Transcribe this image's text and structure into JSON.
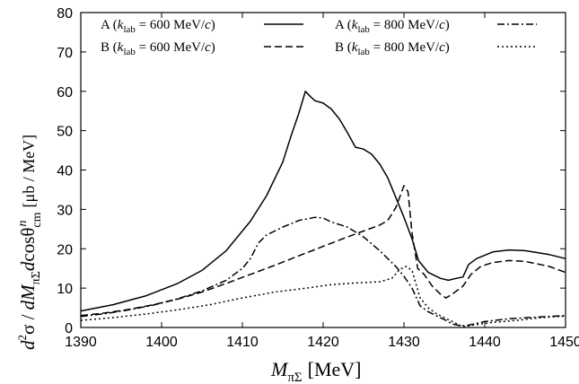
{
  "chart_data": {
    "type": "line",
    "xlabel": "M_πΣ [MeV]",
    "ylabel": "d²σ / dM_πΣ dcosθ^n_cm [μb / MeV]",
    "xlim": [
      1390,
      1450
    ],
    "ylim": [
      0,
      80
    ],
    "xticks": [
      1390,
      1400,
      1410,
      1420,
      1430,
      1440,
      1450
    ],
    "yticks": [
      0,
      10,
      20,
      30,
      40,
      50,
      60,
      70,
      80
    ],
    "grid": false,
    "legend_position": "top",
    "series": [
      {
        "name": "A (k_lab = 600 MeV/c)",
        "style": "solid",
        "points": [
          [
            1390,
            4.2
          ],
          [
            1394,
            5.8
          ],
          [
            1398,
            8.0
          ],
          [
            1402,
            11.2
          ],
          [
            1405,
            14.5
          ],
          [
            1408,
            19.5
          ],
          [
            1411,
            27.0
          ],
          [
            1413,
            33.5
          ],
          [
            1415,
            42.0
          ],
          [
            1416,
            48.5
          ],
          [
            1417,
            54.5
          ],
          [
            1417.8,
            60.0
          ],
          [
            1418.5,
            58.5
          ],
          [
            1419,
            57.6
          ],
          [
            1420,
            57.0
          ],
          [
            1421,
            55.5
          ],
          [
            1422,
            53.0
          ],
          [
            1423,
            49.5
          ],
          [
            1424,
            45.8
          ],
          [
            1425,
            45.3
          ],
          [
            1426,
            44.0
          ],
          [
            1427,
            41.5
          ],
          [
            1428,
            38.0
          ],
          [
            1429,
            33.0
          ],
          [
            1430,
            28.0
          ],
          [
            1431,
            22.5
          ],
          [
            1431.8,
            17.0
          ],
          [
            1433,
            14.0
          ],
          [
            1434.5,
            12.5
          ],
          [
            1435.5,
            12.0
          ],
          [
            1436.5,
            12.5
          ],
          [
            1437.3,
            12.8
          ],
          [
            1438,
            16.0
          ],
          [
            1439,
            17.5
          ],
          [
            1441,
            19.2
          ],
          [
            1443,
            19.7
          ],
          [
            1445,
            19.5
          ],
          [
            1448,
            18.5
          ],
          [
            1450,
            17.5
          ]
        ]
      },
      {
        "name": "B (k_lab = 600 MeV/c)",
        "style": "dashed",
        "points": [
          [
            1390,
            3.0
          ],
          [
            1393,
            3.7
          ],
          [
            1396,
            4.6
          ],
          [
            1399,
            5.8
          ],
          [
            1402,
            7.2
          ],
          [
            1405,
            9.0
          ],
          [
            1408,
            11.2
          ],
          [
            1411,
            13.5
          ],
          [
            1414,
            15.8
          ],
          [
            1417,
            18.2
          ],
          [
            1420,
            20.6
          ],
          [
            1423,
            23.0
          ],
          [
            1425,
            24.5
          ],
          [
            1427,
            26.0
          ],
          [
            1428,
            27.2
          ],
          [
            1429,
            30.5
          ],
          [
            1430,
            36.0
          ],
          [
            1430.5,
            34.5
          ],
          [
            1431,
            24.0
          ],
          [
            1431.7,
            15.0
          ],
          [
            1432.5,
            13.5
          ],
          [
            1433.5,
            10.5
          ],
          [
            1434.5,
            8.5
          ],
          [
            1435.2,
            7.5
          ],
          [
            1436,
            8.5
          ],
          [
            1437.3,
            10.5
          ],
          [
            1438.3,
            13.5
          ],
          [
            1439.5,
            15.5
          ],
          [
            1441,
            16.5
          ],
          [
            1443,
            17.0
          ],
          [
            1445,
            16.8
          ],
          [
            1448,
            15.5
          ],
          [
            1450,
            14.0
          ]
        ]
      },
      {
        "name": "A (k_lab = 800 MeV/c)",
        "style": "dashdot",
        "points": [
          [
            1390,
            2.8
          ],
          [
            1393,
            3.5
          ],
          [
            1396,
            4.5
          ],
          [
            1399,
            5.7
          ],
          [
            1402,
            7.3
          ],
          [
            1405,
            9.3
          ],
          [
            1408,
            12.0
          ],
          [
            1410,
            15.0
          ],
          [
            1411,
            17.5
          ],
          [
            1412,
            21.5
          ],
          [
            1413,
            23.5
          ],
          [
            1414,
            24.5
          ],
          [
            1415,
            25.5
          ],
          [
            1417,
            27.2
          ],
          [
            1419,
            28.0
          ],
          [
            1420,
            27.8
          ],
          [
            1421,
            26.8
          ],
          [
            1423,
            25.5
          ],
          [
            1425,
            23.0
          ],
          [
            1427,
            19.5
          ],
          [
            1429,
            15.5
          ],
          [
            1430,
            13.0
          ],
          [
            1431,
            10.0
          ],
          [
            1432,
            5.5
          ],
          [
            1433,
            4.0
          ],
          [
            1434,
            3.0
          ],
          [
            1435,
            2.0
          ],
          [
            1436,
            0.9
          ],
          [
            1437,
            0.4
          ],
          [
            1438,
            0.6
          ],
          [
            1440,
            1.5
          ],
          [
            1443,
            2.2
          ],
          [
            1446,
            2.6
          ],
          [
            1450,
            3.0
          ]
        ]
      },
      {
        "name": "B (k_lab = 800 MeV/c)",
        "style": "dotted",
        "points": [
          [
            1390,
            1.8
          ],
          [
            1394,
            2.5
          ],
          [
            1398,
            3.4
          ],
          [
            1402,
            4.5
          ],
          [
            1406,
            5.8
          ],
          [
            1410,
            7.5
          ],
          [
            1414,
            9.0
          ],
          [
            1418,
            10.0
          ],
          [
            1421,
            10.9
          ],
          [
            1424,
            11.3
          ],
          [
            1427,
            11.6
          ],
          [
            1428.5,
            12.5
          ],
          [
            1429.5,
            14.8
          ],
          [
            1430.3,
            15.5
          ],
          [
            1431,
            14.5
          ],
          [
            1432,
            7.5
          ],
          [
            1433,
            5.0
          ],
          [
            1434,
            3.5
          ],
          [
            1435,
            2.5
          ],
          [
            1436,
            1.5
          ],
          [
            1437,
            0.5
          ],
          [
            1437.5,
            0.2
          ],
          [
            1438.5,
            0.6
          ],
          [
            1441,
            1.3
          ],
          [
            1444,
            1.8
          ],
          [
            1447,
            2.5
          ],
          [
            1450,
            2.9
          ]
        ]
      }
    ],
    "legend": [
      {
        "label": "A",
        "klab": "k",
        "sub": "lab",
        "value": "= 600 MeV/",
        "unit": "c",
        "style": "solid"
      },
      {
        "label": "A",
        "klab": "k",
        "sub": "lab",
        "value": "= 800 MeV/",
        "unit": "c",
        "style": "dashdot"
      },
      {
        "label": "B",
        "klab": "k",
        "sub": "lab",
        "value": "= 600 MeV/",
        "unit": "c",
        "style": "dashed"
      },
      {
        "label": "B",
        "klab": "k",
        "sub": "lab",
        "value": "= 800 MeV/",
        "unit": "c",
        "style": "dotted"
      }
    ]
  }
}
